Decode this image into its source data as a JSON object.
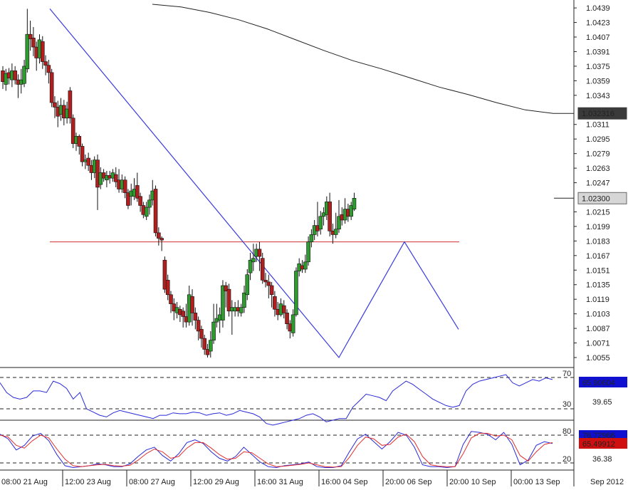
{
  "chart_data": [
    {
      "type": "candlestick",
      "panel": "price",
      "y_ticks": [
        "1.0439",
        "1.0423",
        "1.0407",
        "1.0391",
        "1.0375",
        "1.0359",
        "1.0343",
        "1.0311",
        "1.0295",
        "1.0279",
        "1.0263",
        "1.0247",
        "1.0215",
        "1.0199",
        "1.0183",
        "1.0167",
        "1.0151",
        "1.0135",
        "1.0119",
        "1.0103",
        "1.0087",
        "1.0071",
        "1.0055"
      ],
      "ylim": [
        1.0043,
        1.0451
      ],
      "badges": [
        {
          "label": "1.032316",
          "value": 1.032316,
          "style": "dark"
        },
        {
          "label": "1.02300",
          "value": 1.023,
          "style": "light"
        }
      ],
      "candles": [
        [
          1.037,
          1.0358,
          1.0375,
          1.035
        ],
        [
          1.0355,
          1.0367,
          1.0372,
          1.0348
        ],
        [
          1.0368,
          1.0362,
          1.0373,
          1.0355
        ],
        [
          1.036,
          1.037,
          1.0378,
          1.0352
        ],
        [
          1.037,
          1.036,
          1.0375,
          1.0355
        ],
        [
          1.036,
          1.0355,
          1.0366,
          1.034
        ],
        [
          1.0355,
          1.036,
          1.0372,
          1.0345
        ],
        [
          1.0356,
          1.0375,
          1.0382,
          1.0352
        ],
        [
          1.0372,
          1.041,
          1.0438,
          1.0368
        ],
        [
          1.041,
          1.0405,
          1.0425,
          1.0392
        ],
        [
          1.0406,
          1.0396,
          1.0418,
          1.0386
        ],
        [
          1.0396,
          1.0384,
          1.0402,
          1.037
        ],
        [
          1.0384,
          1.0404,
          1.041,
          1.0378
        ],
        [
          1.0402,
          1.038,
          1.0408,
          1.0372
        ],
        [
          1.038,
          1.0376,
          1.0387,
          1.0365
        ],
        [
          1.0376,
          1.0368,
          1.0382,
          1.0356
        ],
        [
          1.0368,
          1.0335,
          1.0372,
          1.033
        ],
        [
          1.0335,
          1.033,
          1.0342,
          1.0318
        ],
        [
          1.033,
          1.032,
          1.0337,
          1.0308
        ],
        [
          1.0322,
          1.0332,
          1.034,
          1.0315
        ],
        [
          1.0332,
          1.0318,
          1.0338,
          1.031
        ],
        [
          1.0318,
          1.0328,
          1.0336,
          1.0312
        ],
        [
          1.0348,
          1.0318,
          1.0352,
          1.0312
        ],
        [
          1.0318,
          1.029,
          1.0322,
          1.0285
        ],
        [
          1.029,
          1.0298,
          1.0302,
          1.0282
        ],
        [
          1.0298,
          1.0287,
          1.03,
          1.0278
        ],
        [
          1.0287,
          1.027,
          1.029,
          1.0265
        ],
        [
          1.027,
          1.0272,
          1.0278,
          1.0262
        ],
        [
          1.0274,
          1.0266,
          1.028,
          1.026
        ],
        [
          1.0266,
          1.0258,
          1.0272,
          1.025
        ],
        [
          1.0258,
          1.0272,
          1.0276,
          1.0252
        ],
        [
          1.0272,
          1.0242,
          1.0278,
          1.0217
        ],
        [
          1.0245,
          1.0258,
          1.0264,
          1.024
        ],
        [
          1.0258,
          1.0252,
          1.0262,
          1.0248
        ],
        [
          1.025,
          1.0255,
          1.026,
          1.0242
        ],
        [
          1.0255,
          1.0252,
          1.026,
          1.0246
        ],
        [
          1.0252,
          1.0258,
          1.0262,
          1.0248
        ],
        [
          1.0256,
          1.0248,
          1.0264,
          1.0242
        ],
        [
          1.025,
          1.024,
          1.0262,
          1.0236
        ],
        [
          1.024,
          1.025,
          1.0256,
          1.0236
        ],
        [
          1.025,
          1.0236,
          1.0254,
          1.023
        ],
        [
          1.0236,
          1.0222,
          1.024,
          1.0218
        ],
        [
          1.0232,
          1.0238,
          1.0246,
          1.0222
        ],
        [
          1.0232,
          1.024,
          1.0252,
          1.0228
        ],
        [
          1.0244,
          1.023,
          1.0258,
          1.0226
        ],
        [
          1.0232,
          1.0222,
          1.0236,
          1.0215
        ],
        [
          1.0222,
          1.0212,
          1.0226,
          1.0208
        ],
        [
          1.021,
          1.022,
          1.0226,
          1.0206
        ],
        [
          1.022,
          1.0228,
          1.0234,
          1.0212
        ],
        [
          1.0228,
          1.0238,
          1.025,
          1.0222
        ],
        [
          1.024,
          1.0192,
          1.0244,
          1.0188
        ],
        [
          1.0192,
          1.0186,
          1.0198,
          1.0178
        ],
        [
          1.0186,
          1.0184,
          1.0188,
          1.0172
        ],
        [
          1.0162,
          1.013,
          1.0166,
          1.0126
        ],
        [
          1.014,
          1.0124,
          1.0146,
          1.0118
        ],
        [
          1.0124,
          1.0114,
          1.0128,
          1.0104
        ],
        [
          1.0114,
          1.0106,
          1.012,
          1.0096
        ],
        [
          1.0104,
          1.011,
          1.0116,
          1.0098
        ],
        [
          1.0108,
          1.0102,
          1.0112,
          1.0094
        ],
        [
          1.0106,
          1.01,
          1.011,
          1.0088
        ],
        [
          1.01,
          1.0094,
          1.0114,
          1.0088
        ],
        [
          1.0094,
          1.0124,
          1.0134,
          1.009
        ],
        [
          1.0122,
          1.0104,
          1.013,
          1.009
        ],
        [
          1.0104,
          1.0096,
          1.011,
          1.0086
        ],
        [
          1.0096,
          1.0084,
          1.01,
          1.0074
        ],
        [
          1.0086,
          1.0076,
          1.009,
          1.0066
        ],
        [
          1.0076,
          1.0064,
          1.008,
          1.0058
        ],
        [
          1.0064,
          1.0058,
          1.007,
          1.0055
        ],
        [
          1.0062,
          1.0074,
          1.0084,
          1.0055
        ],
        [
          1.0074,
          1.0094,
          1.0114,
          1.007
        ],
        [
          1.0094,
          1.0098,
          1.0114,
          1.0088
        ],
        [
          1.0096,
          1.0102,
          1.011,
          1.0082
        ],
        [
          1.0096,
          1.0134,
          1.014,
          1.0088
        ],
        [
          1.0134,
          1.0128,
          1.0138,
          1.011
        ],
        [
          1.013,
          1.0106,
          1.0136,
          1.01
        ],
        [
          1.0106,
          1.011,
          1.0118,
          1.008
        ],
        [
          1.0106,
          1.011,
          1.0116,
          1.01
        ],
        [
          1.011,
          1.0106,
          1.0118,
          1.01
        ],
        [
          1.0104,
          1.011,
          1.0114,
          1.01
        ],
        [
          1.011,
          1.0126,
          1.0134,
          1.0104
        ],
        [
          1.0124,
          1.0146,
          1.0152,
          1.0118
        ],
        [
          1.0148,
          1.0162,
          1.017,
          1.014
        ],
        [
          1.016,
          1.0164,
          1.018,
          1.015
        ],
        [
          1.0166,
          1.0174,
          1.018,
          1.016
        ],
        [
          1.0174,
          1.0166,
          1.0182,
          1.015
        ],
        [
          1.0164,
          1.014,
          1.017,
          1.0136
        ],
        [
          1.014,
          1.0138,
          1.0148,
          1.0132
        ],
        [
          1.0138,
          1.0134,
          1.0146,
          1.012
        ],
        [
          1.0134,
          1.0124,
          1.0138,
          1.011
        ],
        [
          1.0122,
          1.0108,
          1.0128,
          1.01
        ],
        [
          1.0108,
          1.0102,
          1.0116,
          1.0096
        ],
        [
          1.0102,
          1.0114,
          1.012,
          1.01
        ],
        [
          1.0112,
          1.0104,
          1.0118,
          1.0098
        ],
        [
          1.0104,
          1.0092,
          1.0108,
          1.0086
        ],
        [
          1.0092,
          1.0084,
          1.0096,
          1.0076
        ],
        [
          1.0082,
          1.0102,
          1.0108,
          1.0078
        ],
        [
          1.0102,
          1.015,
          1.0154,
          1.01
        ],
        [
          1.015,
          1.0158,
          1.0164,
          1.0144
        ],
        [
          1.0156,
          1.0152,
          1.0162,
          1.0148
        ],
        [
          1.0152,
          1.016,
          1.0168,
          1.0148
        ],
        [
          1.016,
          1.0182,
          1.0188,
          1.0156
        ],
        [
          1.0182,
          1.019,
          1.0196,
          1.0176
        ],
        [
          1.019,
          1.02,
          1.0206,
          1.0184
        ],
        [
          1.02,
          1.0194,
          1.0226,
          1.0188
        ],
        [
          1.0196,
          1.021,
          1.0216,
          1.019
        ],
        [
          1.021,
          1.0214,
          1.022,
          1.02
        ],
        [
          1.0212,
          1.0226,
          1.0232,
          1.0206
        ],
        [
          1.0226,
          1.0194,
          1.0236,
          1.0188
        ],
        [
          1.0194,
          1.019,
          1.0202,
          1.018
        ],
        [
          1.019,
          1.0196,
          1.0214,
          1.0186
        ],
        [
          1.0196,
          1.021,
          1.0228,
          1.0192
        ],
        [
          1.0212,
          1.0206,
          1.022,
          1.02
        ],
        [
          1.0206,
          1.0218,
          1.023,
          1.0202
        ],
        [
          1.0218,
          1.021,
          1.0224,
          1.0204
        ],
        [
          1.021,
          1.0222,
          1.0226,
          1.0206
        ],
        [
          1.0218,
          1.023,
          1.0236,
          1.0216
        ]
      ],
      "moving_average": [
        1.0443,
        1.044,
        1.0434,
        1.0426,
        1.0416,
        1.0404,
        1.0392,
        1.0381,
        1.0372,
        1.0362,
        1.0352,
        1.0344,
        1.0335,
        1.0327,
        1.0323
      ],
      "pattern_line": [
        1.0438,
        1.0055,
        1.0182,
        1.0086
      ],
      "resistance": 1.0182
    },
    {
      "type": "line",
      "panel": "rsi",
      "ylim": [
        0,
        100
      ],
      "y_ticks": [
        "70",
        "30"
      ],
      "levels": [
        70,
        30
      ],
      "badge": {
        "label": "65.90604"
      },
      "value_label": "39.65",
      "series": [
        {
          "values": [
            62,
            50,
            44,
            42,
            44,
            52,
            52,
            50,
            64,
            61,
            55,
            42,
            50,
            30,
            26,
            22,
            20,
            25,
            28,
            26,
            24,
            22,
            20,
            18,
            22,
            22,
            25,
            24,
            24,
            26,
            25,
            22,
            24,
            25,
            22,
            24,
            28,
            26,
            24,
            20,
            12,
            10,
            12,
            14,
            16,
            18,
            22,
            24,
            20,
            14,
            16,
            18,
            18,
            32,
            40,
            48,
            46,
            44,
            40,
            52,
            58,
            64,
            60,
            54,
            48,
            42,
            38,
            34,
            32,
            34,
            52,
            60,
            64,
            66,
            68,
            70,
            72,
            62,
            58,
            62,
            66,
            64,
            68,
            66
          ]
        }
      ]
    },
    {
      "type": "line",
      "panel": "stochastic",
      "ylim": [
        0,
        100
      ],
      "y_ticks": [
        "80",
        "20"
      ],
      "levels": [
        80,
        20
      ],
      "badges": [
        {
          "label": "76.72966"
        },
        {
          "label": "65.49912"
        }
      ],
      "value_label": "36.38",
      "series": [
        {
          "color": "#2a2ad8",
          "values": [
            82,
            72,
            48,
            58,
            78,
            84,
            68,
            38,
            14,
            10,
            12,
            14,
            18,
            16,
            12,
            12,
            18,
            34,
            48,
            54,
            36,
            24,
            40,
            64,
            70,
            62,
            44,
            30,
            24,
            34,
            54,
            38,
            22,
            12,
            10,
            14,
            16,
            18,
            22,
            12,
            10,
            10,
            14,
            44,
            72,
            82,
            66,
            50,
            66,
            86,
            80,
            54,
            16,
            12,
            12,
            10,
            12,
            60,
            88,
            86,
            82,
            70,
            86,
            60,
            16,
            26,
            58,
            66,
            62
          ]
        },
        {
          "color": "#e03030",
          "values": [
            80,
            76,
            58,
            52,
            68,
            80,
            74,
            50,
            28,
            14,
            12,
            14,
            16,
            17,
            14,
            13,
            15,
            26,
            40,
            50,
            44,
            30,
            34,
            52,
            64,
            64,
            52,
            38,
            28,
            30,
            44,
            42,
            30,
            18,
            12,
            13,
            15,
            17,
            20,
            16,
            12,
            11,
            12,
            32,
            58,
            76,
            72,
            58,
            60,
            76,
            82,
            66,
            34,
            16,
            13,
            12,
            12,
            40,
            74,
            84,
            84,
            78,
            80,
            70,
            36,
            24,
            44,
            60,
            64
          ]
        }
      ]
    }
  ],
  "x_axis": {
    "labels": [
      "08:00 21 Aug",
      "12:00 23 Aug",
      "08:00 27 Aug",
      "12:00 29 Aug",
      "16:00 31 Aug",
      "16:00 04 Sep",
      "20:00 06 Sep",
      "20:00 10 Sep",
      "00:00 13 Sep",
      "Sep 2012"
    ]
  },
  "colors": {
    "up": "#2f9a2f",
    "down": "#b01e1e",
    "pattern": "#3a3ae0",
    "resistance": "#d03030",
    "ma": "#222222",
    "rsi": "#2a2ad8",
    "grid": "#222222",
    "badge_dark": "#3a3a3a",
    "badge_light": "#d6d6d6",
    "badge_blue": "#1010d0",
    "badge_red": "#d01010"
  }
}
